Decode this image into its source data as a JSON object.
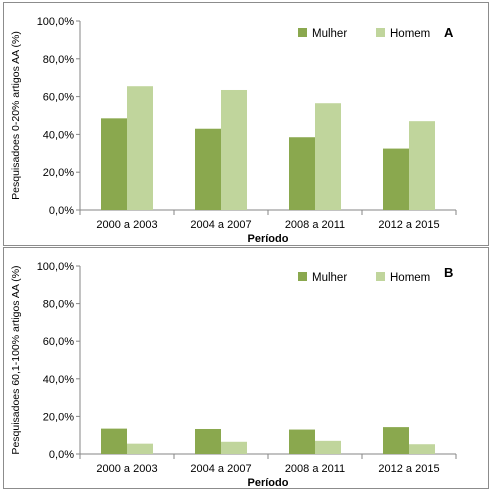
{
  "colors": {
    "mulher": "#8aa84e",
    "homem": "#c0d59c",
    "axis": "#868686"
  },
  "chart_data": [
    {
      "type": "bar",
      "panel_label": "A",
      "categories": [
        "2000 a 2003",
        "2004 a 2007",
        "2008 a 2011",
        "2012 a 2015"
      ],
      "series": [
        {
          "name": "Mulher",
          "values": [
            48.5,
            43.0,
            38.5,
            32.5
          ]
        },
        {
          "name": "Homem",
          "values": [
            65.5,
            63.5,
            56.5,
            47.0
          ]
        }
      ],
      "yticks": [
        "0,0%",
        "20,0%",
        "40,0%",
        "60,0%",
        "80,0%",
        "100,0%"
      ],
      "ylim": [
        0,
        100
      ],
      "xlabel": "Período",
      "ylabel": "Pesquisadoes 0-20% artigos AA (%)",
      "legend": "top-right",
      "grid": false
    },
    {
      "type": "bar",
      "panel_label": "B",
      "categories": [
        "2000 a 2003",
        "2004 a 2007",
        "2008 a 2011",
        "2012 a 2015"
      ],
      "series": [
        {
          "name": "Mulher",
          "values": [
            13.5,
            13.3,
            13.0,
            14.3
          ]
        },
        {
          "name": "Homem",
          "values": [
            5.5,
            6.5,
            7.0,
            5.2
          ]
        }
      ],
      "yticks": [
        "0,0%",
        "20,0%",
        "40,0%",
        "60,0%",
        "80,0%",
        "100,0%"
      ],
      "ylim": [
        0,
        100
      ],
      "xlabel": "Período",
      "ylabel": "Pesquisadoes 60,1-100% artigos AA (%)",
      "legend": "top-right",
      "grid": false
    }
  ]
}
